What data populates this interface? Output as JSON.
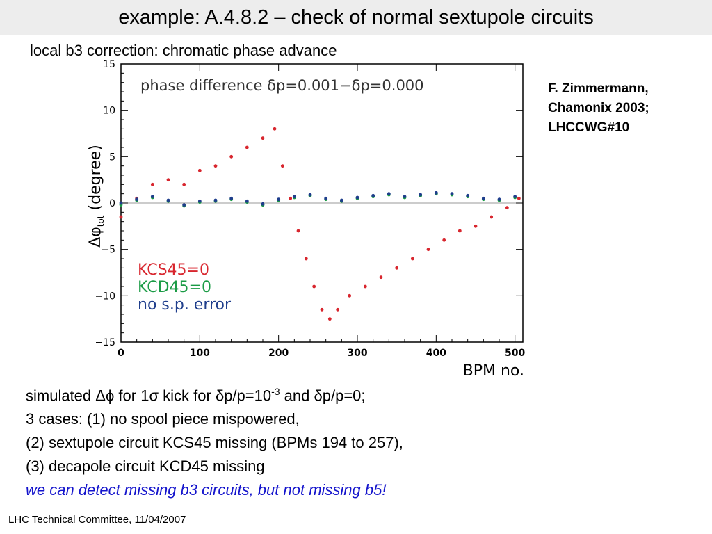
{
  "slide": {
    "title": "example: A.4.8.2 – check of normal sextupole circuits",
    "subtitle": "local b3 correction: chromatic phase advance",
    "credit": [
      "F. Zimmermann,",
      "Chamonix 2003;",
      "LHCCWG#10"
    ],
    "body": {
      "line1": {
        "pre": "simulated ",
        "dphi": "Δϕ",
        "mid1": " for 1",
        "sigma": "σ",
        "mid2": " kick for ",
        "dp1": "δ",
        "mid3": "p/p=10",
        "sup": "-3",
        "mid4": " and ",
        "dp2": "δ",
        "end": "p/p=0;"
      },
      "line2": "3 cases: (1) no spool piece mispowered,",
      "line3": "(2) sextupole circuit KCS45 missing (BPMs 194 to 257),",
      "line4": "(3) decapole circuit KCD45 missing",
      "line5": "we can detect missing b3 circuits, but not missing b5!"
    },
    "footer": "LHC Technical Committee, 11/04/2007"
  },
  "colors": {
    "red": "#d8262e",
    "green": "#1a9b45",
    "blue": "#1f3e8c",
    "emphasis": "#1414cc"
  },
  "chart_data": {
    "type": "scatter",
    "title": "phase difference δp=0.001−δp=0.000",
    "xlabel": "BPM no.",
    "ylabel": "Δφ_tot (degree)",
    "ylabel_parts": {
      "main": "Δφ",
      "sub": "tot",
      "unit": " (degree)"
    },
    "xlim": [
      0,
      510
    ],
    "ylim": [
      -15,
      15
    ],
    "xticks": [
      "0",
      "100",
      "200",
      "300",
      "400",
      "500"
    ],
    "yticks": [
      "15",
      "10",
      "5",
      "0",
      "−5",
      "−10",
      "−15"
    ],
    "legend": [
      "KCS45=0",
      "KCD45=0",
      "no s.p. error"
    ],
    "legend_position": "bottom-left",
    "series": [
      {
        "name": "KCS45=0",
        "color": "#d8262e",
        "x": [
          0,
          20,
          40,
          60,
          80,
          100,
          120,
          140,
          160,
          180,
          195,
          205,
          215,
          225,
          235,
          245,
          255,
          265,
          275,
          290,
          310,
          330,
          350,
          370,
          390,
          410,
          430,
          450,
          470,
          490,
          505
        ],
        "y": [
          -1.5,
          0.5,
          2,
          2.5,
          2,
          3.5,
          4,
          5,
          6,
          7,
          8,
          4,
          0.5,
          -3,
          -6,
          -9,
          -11.5,
          -12.5,
          -11.5,
          -10,
          -9,
          -8,
          -7,
          -6,
          -5,
          -4,
          -3,
          -2.5,
          -1.5,
          -0.5,
          0.5
        ]
      },
      {
        "name": "KCD45=0",
        "color": "#1a9b45",
        "x": [
          0,
          20,
          40,
          60,
          80,
          100,
          120,
          140,
          160,
          180,
          200,
          220,
          240,
          260,
          280,
          300,
          320,
          340,
          360,
          380,
          400,
          420,
          440,
          460,
          480,
          500
        ],
        "y": [
          -0.2,
          0.3,
          0.6,
          0.2,
          -0.3,
          0.1,
          0.2,
          0.4,
          0.1,
          -0.2,
          0.3,
          0.6,
          0.8,
          0.4,
          0.2,
          0.5,
          0.7,
          0.9,
          0.6,
          0.8,
          1.0,
          0.9,
          0.7,
          0.4,
          0.3,
          0.6
        ]
      },
      {
        "name": "no s.p. error",
        "color": "#1f3e8c",
        "x": [
          0,
          20,
          40,
          60,
          80,
          100,
          120,
          140,
          160,
          180,
          200,
          220,
          240,
          260,
          280,
          300,
          320,
          340,
          360,
          380,
          400,
          420,
          440,
          460,
          480,
          500
        ],
        "y": [
          0,
          0.4,
          0.7,
          0.3,
          -0.2,
          0.2,
          0.3,
          0.5,
          0.2,
          -0.1,
          0.4,
          0.7,
          0.9,
          0.5,
          0.3,
          0.6,
          0.8,
          1.0,
          0.7,
          0.9,
          1.1,
          1.0,
          0.8,
          0.5,
          0.4,
          0.7
        ]
      }
    ]
  }
}
